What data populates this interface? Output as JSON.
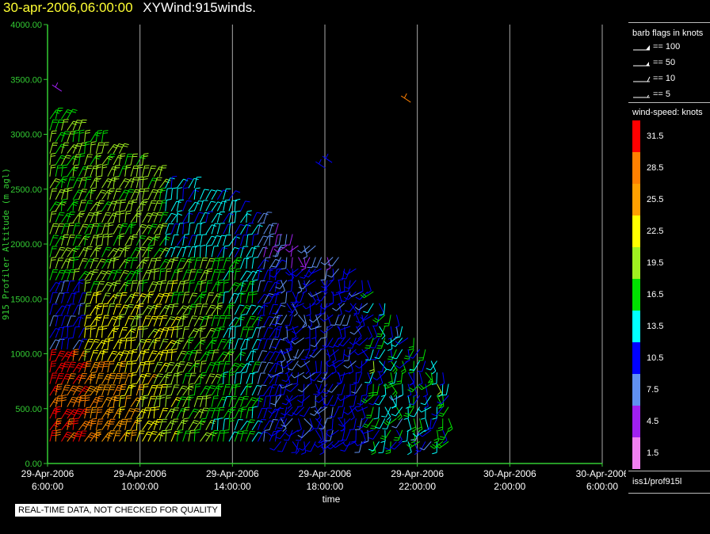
{
  "header": {
    "datetime": "30-apr-2006,06:00:00",
    "title": "XYWind:915winds."
  },
  "colors": {
    "axis": "#33cc33",
    "grid": "#aaaaaa",
    "background": "#000000",
    "datetime": "#ffff33"
  },
  "chart_data": {
    "type": "wind-barb time-height plot",
    "xlabel": "time",
    "ylabel": "915 Profiler Altitude (m agl)",
    "ylim": [
      0,
      4000
    ],
    "y_ticks": [
      "0.00",
      "500.00",
      "1000.00",
      "1500.00",
      "2000.00",
      "2500.00",
      "3000.00",
      "3500.00",
      "4000.00"
    ],
    "x_range_hours": [
      "29-Apr-2006 6:00:00",
      "30-Apr-2006 6:00:00"
    ],
    "x_ticks": [
      {
        "date": "29-Apr-2006",
        "time": "6:00:00"
      },
      {
        "date": "29-Apr-2006",
        "time": "10:00:00"
      },
      {
        "date": "29-Apr-2006",
        "time": "14:00:00"
      },
      {
        "date": "29-Apr-2006",
        "time": "18:00:00"
      },
      {
        "date": "29-Apr-2006",
        "time": "22:00:00"
      },
      {
        "date": "30-Apr-2006",
        "time": "2:00:00"
      },
      {
        "date": "30-Apr-2006",
        "time": "6:00:00"
      }
    ],
    "grid": "vertical lines at each x tick",
    "data_coverage_hours": [
      6.0,
      23.5
    ],
    "wind_speed_bins_knots": [
      1.5,
      4.5,
      7.5,
      10.5,
      13.5,
      16.5,
      19.5,
      22.5,
      25.5,
      28.5,
      31.5
    ],
    "legend_placement": "right"
  },
  "legend": {
    "barb_title": "barb flags in knots",
    "barb_flags": [
      {
        "label": "== 100",
        "kind": "triangle"
      },
      {
        "label": "== 50",
        "kind": "halfpenn"
      },
      {
        "label": "== 10",
        "kind": "full"
      },
      {
        "label": "== 5",
        "kind": "half"
      }
    ],
    "speed_title": "wind-speed: knots",
    "speed_scale": [
      {
        "label": "31.5",
        "color": "#ff0000"
      },
      {
        "label": "28.5",
        "color": "#ff8000"
      },
      {
        "label": "25.5",
        "color": "#ffa000"
      },
      {
        "label": "22.5",
        "color": "#ffff00"
      },
      {
        "label": "19.5",
        "color": "#a0f020"
      },
      {
        "label": "16.5",
        "color": "#00e000"
      },
      {
        "label": "13.5",
        "color": "#00ffff"
      },
      {
        "label": "10.5",
        "color": "#0000ff"
      },
      {
        "label": "7.5",
        "color": "#6090f0"
      },
      {
        "label": "4.5",
        "color": "#a020f0"
      },
      {
        "label": "1.5",
        "color": "#f080f0"
      }
    ],
    "source": "iss1/prof915l"
  },
  "footer": {
    "note": "REAL-TIME DATA, NOT CHECKED FOR QUALITY"
  }
}
